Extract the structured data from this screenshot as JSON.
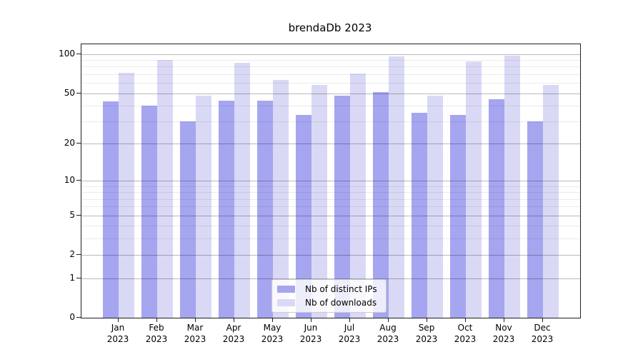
{
  "chart_data": {
    "type": "bar",
    "title": "brendaDb 2023",
    "categories": [
      "Jan",
      "Feb",
      "Mar",
      "Apr",
      "May",
      "Jun",
      "Jul",
      "Aug",
      "Sep",
      "Oct",
      "Nov",
      "Dec"
    ],
    "category_year": "2023",
    "series": [
      {
        "name": "Nb of distinct IPs",
        "color": "#a5a5f0",
        "values": [
          43,
          40,
          30,
          44,
          44,
          34,
          48,
          51,
          35,
          34,
          45,
          30
        ]
      },
      {
        "name": "Nb of downloads",
        "color": "#d9d9f6",
        "values": [
          72,
          90,
          48,
          86,
          63,
          58,
          71,
          96,
          48,
          88,
          97,
          58
        ]
      }
    ],
    "xlabel": "",
    "ylabel": "",
    "yscale": "log1p",
    "yticks": [
      0,
      1,
      2,
      5,
      10,
      20,
      50,
      100
    ],
    "yticks_minor": [
      3,
      4,
      6,
      7,
      8,
      9,
      30,
      40,
      60,
      70,
      80,
      90
    ],
    "ylim": [
      0,
      119
    ],
    "grid": true,
    "legend_position": "lower-center"
  }
}
